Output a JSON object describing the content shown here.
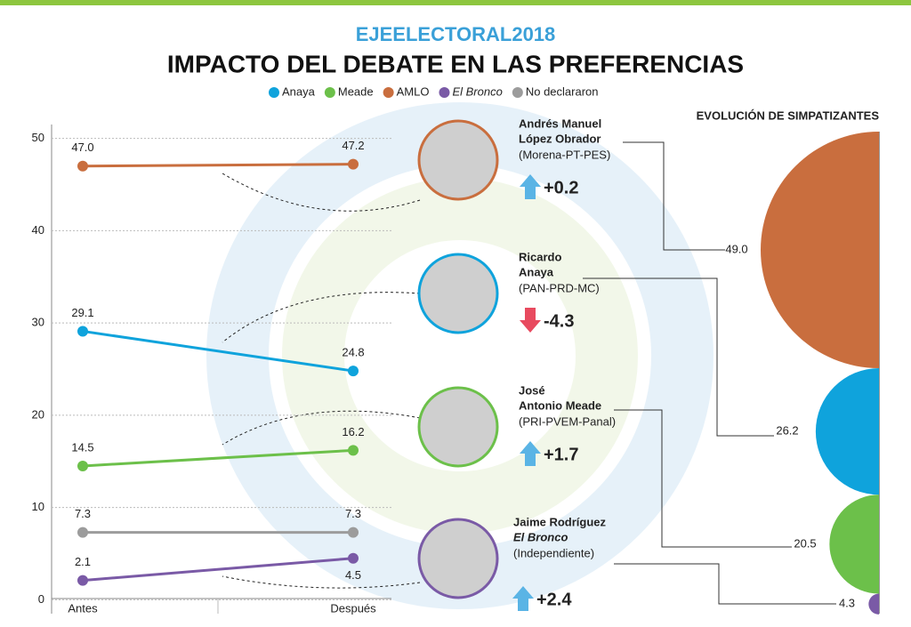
{
  "header": {
    "brand": "EJEELECTORAL2018",
    "title": "IMPACTO DEL DEBATE EN LAS PREFERENCIAS"
  },
  "chart_data": [
    {
      "type": "line",
      "categories": [
        "Antes",
        "Después"
      ],
      "series": [
        {
          "name": "Anaya",
          "color": "#0fa3dc",
          "values": [
            29.1,
            24.8
          ]
        },
        {
          "name": "Meade",
          "color": "#6cc04a",
          "values": [
            14.5,
            16.2
          ]
        },
        {
          "name": "AMLO",
          "color": "#c96e3e",
          "values": [
            47.0,
            47.2
          ],
          "value_labels": [
            "47.0",
            "47.2"
          ]
        },
        {
          "name": "El Bronco",
          "color": "#7a5aa6",
          "values": [
            2.1,
            4.5
          ]
        },
        {
          "name": "No declararon",
          "color": "#9c9c9c",
          "values": [
            7.3,
            7.3
          ]
        }
      ],
      "ylim": [
        -1.5,
        51.5
      ],
      "yticks": [
        0,
        10,
        20,
        30,
        40,
        50
      ],
      "grid": true
    },
    {
      "type": "semicircle",
      "title": "EVOLUCIÓN DE SIMPATIZANTES",
      "values": [
        49.0,
        26.2,
        20.5,
        4.3
      ],
      "value_labels": [
        "49.0",
        "26.2",
        "20.5",
        "4.3"
      ],
      "colors": [
        "#c96e3e",
        "#0fa3dc",
        "#6cc04a",
        "#7a5aa6"
      ]
    }
  ],
  "candidates": [
    {
      "name_lines": [
        "Andrés Manuel",
        "López Obrador"
      ],
      "coalition": "(Morena-PT-PES)",
      "change": {
        "value": 0.2,
        "label": "+0.2"
      }
    },
    {
      "name_lines": [
        "Ricardo",
        "Anaya"
      ],
      "coalition": "(PAN-PRD-MC)",
      "change": {
        "value": -4.3,
        "label": "-4.3"
      }
    },
    {
      "name_lines": [
        "José",
        "Antonio Meade"
      ],
      "coalition": "(PRI-PVEM-Panal)",
      "change": {
        "value": 1.7,
        "label": "+1.7"
      }
    },
    {
      "name_lines": [
        "Jaime Rodríguez",
        "El Bronco"
      ],
      "coalition": "(Independiente)",
      "change": {
        "value": 2.4,
        "label": "+2.4"
      }
    }
  ]
}
